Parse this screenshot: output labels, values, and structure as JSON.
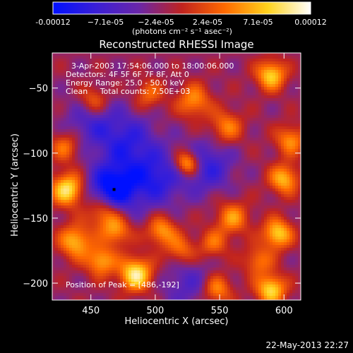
{
  "chart_data": {
    "type": "heatmap",
    "title": "Reconstructed RHESSI Image",
    "xlabel": "Heliocentric X (arcsec)",
    "ylabel": "Heliocentric Y (arcsec)",
    "xlim": [
      420,
      613
    ],
    "ylim": [
      -213,
      -23
    ],
    "x_ticks": [
      450,
      500,
      550,
      600
    ],
    "y_ticks": [
      -50,
      -100,
      -150,
      -200
    ],
    "colorbar": {
      "min": -0.00012,
      "max": 0.00012,
      "tick_values": [
        -0.00012,
        -7.1e-05,
        -2.4e-05,
        2.4e-05,
        7.1e-05,
        0.00012
      ],
      "tick_labels": [
        "-0.00012",
        "−7.1e-05",
        "−2.4e-05",
        "2.4e-05",
        "7.1e-05",
        "0.00012"
      ],
      "unit_label": "(photons cm⁻² s⁻¹ asec⁻²)",
      "colormap": [
        "#0010ff",
        "#3a1fd6",
        "#6a26a8",
        "#c0231f",
        "#ff6a00",
        "#ffd21c",
        "#ffffff"
      ]
    },
    "info_lines": [
      "3-Apr-2003 17:54:06.000 to 18:00:06.000",
      "Detectors: 4F 5F 6F 7F 8F, Att 0",
      "Energy Range: 25.0 - 50.0 keV",
      "Clean     Total counts: 7.50E+03"
    ],
    "peak_label": "Position of Peak = [486,-192]",
    "peak_marker": {
      "x": 468,
      "y": -128
    },
    "sources": [
      {
        "x": 467,
        "y": -128,
        "amp": -1.0,
        "sigma": 13
      },
      {
        "x": 478,
        "y": -92,
        "amp": -0.55,
        "sigma": 16
      },
      {
        "x": 500,
        "y": -120,
        "amp": -0.6,
        "sigma": 15
      },
      {
        "x": 540,
        "y": -110,
        "amp": -0.55,
        "sigma": 14
      },
      {
        "x": 450,
        "y": -75,
        "amp": -0.4,
        "sigma": 14
      },
      {
        "x": 525,
        "y": -200,
        "amp": -0.35,
        "sigma": 14
      },
      {
        "x": 432,
        "y": -128,
        "amp": 0.95,
        "sigma": 9
      },
      {
        "x": 460,
        "y": -145,
        "amp": 0.7,
        "sigma": 9
      },
      {
        "x": 438,
        "y": -168,
        "amp": 0.75,
        "sigma": 9
      },
      {
        "x": 485,
        "y": -193,
        "amp": 1.0,
        "sigma": 9
      },
      {
        "x": 458,
        "y": -183,
        "amp": 0.7,
        "sigma": 8
      },
      {
        "x": 470,
        "y": -160,
        "amp": 0.6,
        "sigma": 8
      },
      {
        "x": 505,
        "y": -160,
        "amp": 0.65,
        "sigma": 8
      },
      {
        "x": 525,
        "y": -108,
        "amp": 0.95,
        "sigma": 7
      },
      {
        "x": 530,
        "y": -60,
        "amp": 0.6,
        "sigma": 9
      },
      {
        "x": 555,
        "y": -80,
        "amp": 0.55,
        "sigma": 9
      },
      {
        "x": 560,
        "y": -150,
        "amp": 0.6,
        "sigma": 9
      },
      {
        "x": 590,
        "y": -40,
        "amp": 0.85,
        "sigma": 8
      },
      {
        "x": 605,
        "y": -90,
        "amp": 0.6,
        "sigma": 8
      },
      {
        "x": 600,
        "y": -120,
        "amp": 0.75,
        "sigma": 8
      },
      {
        "x": 595,
        "y": -162,
        "amp": 0.85,
        "sigma": 8
      },
      {
        "x": 590,
        "y": -205,
        "amp": 0.9,
        "sigma": 8
      },
      {
        "x": 580,
        "y": -183,
        "amp": 0.5,
        "sigma": 8
      },
      {
        "x": 548,
        "y": -205,
        "amp": 0.6,
        "sigma": 8
      },
      {
        "x": 452,
        "y": -60,
        "amp": 0.55,
        "sigma": 8
      },
      {
        "x": 430,
        "y": -95,
        "amp": 0.5,
        "sigma": 8
      },
      {
        "x": 495,
        "y": -55,
        "amp": 0.45,
        "sigma": 8
      },
      {
        "x": 520,
        "y": -175,
        "amp": 0.5,
        "sigma": 8
      },
      {
        "x": 545,
        "y": -170,
        "amp": 0.45,
        "sigma": 8
      }
    ],
    "background_level": -0.15
  },
  "timestamp": "22-May-2013 22:27"
}
